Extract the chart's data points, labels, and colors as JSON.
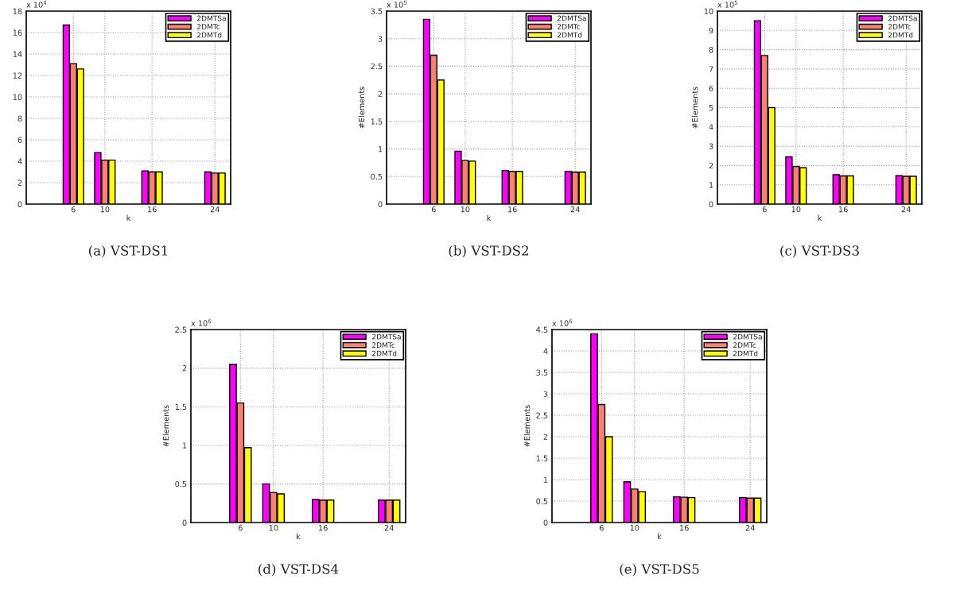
{
  "chart_data": [
    {
      "type": "bar",
      "title": "(a) VST-DS1",
      "xlabel": "k",
      "annotations": [
        "x 10$^{4}$"
      ],
      "x": [
        6,
        10,
        16,
        24
      ],
      "xlim": [
        0,
        26
      ],
      "xticks": [
        6,
        10,
        16,
        24
      ],
      "ylim": [
        0,
        18
      ],
      "yticks": [
        0,
        2,
        4,
        6,
        8,
        10,
        12,
        14,
        16,
        18
      ],
      "grid": true,
      "legend": "top right",
      "series": [
        {
          "name": "2DMTSa",
          "color": "#ff00ff",
          "values": [
            16.7,
            4.8,
            3.1,
            3.0
          ]
        },
        {
          "name": "2DMTc",
          "color": "#fa8072",
          "values": [
            13.1,
            4.1,
            3.0,
            2.9
          ]
        },
        {
          "name": "2DMTd",
          "color": "#ffff00",
          "values": [
            12.6,
            4.1,
            3.0,
            2.9
          ]
        }
      ]
    },
    {
      "type": "bar",
      "title": "(b) VST-DS2",
      "xlabel": "k",
      "ylabel": "#Elements",
      "annotations": [
        "x 10$^{5}$"
      ],
      "x": [
        6,
        10,
        16,
        24
      ],
      "xlim": [
        0,
        26
      ],
      "xticks": [
        6,
        10,
        16,
        24
      ],
      "ylim": [
        0,
        3.5
      ],
      "yticks": [
        0,
        0.5,
        1,
        1.5,
        2,
        2.5,
        3,
        3.5
      ],
      "grid": true,
      "legend": "top right",
      "series": [
        {
          "name": "2DMTSa",
          "color": "#ff00ff",
          "values": [
            3.35,
            0.96,
            0.61,
            0.59
          ]
        },
        {
          "name": "2DMTc",
          "color": "#fa8072",
          "values": [
            2.7,
            0.79,
            0.59,
            0.58
          ]
        },
        {
          "name": "2DMTd",
          "color": "#ffff00",
          "values": [
            2.25,
            0.78,
            0.59,
            0.58
          ]
        }
      ]
    },
    {
      "type": "bar",
      "title": "(c) VST-DS3",
      "xlabel": "k",
      "ylabel": "#Elements",
      "annotations": [
        "x 10$^{5}$"
      ],
      "x": [
        6,
        10,
        16,
        24
      ],
      "xlim": [
        0,
        26
      ],
      "xticks": [
        6,
        10,
        16,
        24
      ],
      "ylim": [
        0,
        10
      ],
      "yticks": [
        0,
        1,
        2,
        3,
        4,
        5,
        6,
        7,
        8,
        9,
        10
      ],
      "grid": true,
      "legend": "top right",
      "series": [
        {
          "name": "2DMTSa",
          "color": "#ff00ff",
          "values": [
            9.5,
            2.45,
            1.52,
            1.47
          ]
        },
        {
          "name": "2DMTc",
          "color": "#fa8072",
          "values": [
            7.7,
            1.95,
            1.46,
            1.44
          ]
        },
        {
          "name": "2DMTd",
          "color": "#ffff00",
          "values": [
            5.0,
            1.88,
            1.46,
            1.44
          ]
        }
      ]
    },
    {
      "type": "bar",
      "title": "(d) VST-DS4",
      "xlabel": "k",
      "ylabel": "#Elements",
      "annotations": [
        "x 10$^{6}$"
      ],
      "x": [
        6,
        10,
        16,
        24
      ],
      "xlim": [
        0,
        26
      ],
      "xticks": [
        6,
        10,
        16,
        24
      ],
      "ylim": [
        0,
        2.5
      ],
      "yticks": [
        0,
        0.5,
        1,
        1.5,
        2,
        2.5
      ],
      "grid": true,
      "legend": "top right",
      "series": [
        {
          "name": "2DMTSa",
          "color": "#ff00ff",
          "values": [
            2.05,
            0.5,
            0.3,
            0.29
          ]
        },
        {
          "name": "2DMTc",
          "color": "#fa8072",
          "values": [
            1.55,
            0.39,
            0.29,
            0.29
          ]
        },
        {
          "name": "2DMTd",
          "color": "#ffff00",
          "values": [
            0.97,
            0.37,
            0.29,
            0.29
          ]
        }
      ]
    },
    {
      "type": "bar",
      "title": "(e) VST-DS5",
      "xlabel": "k",
      "ylabel": "#Elements",
      "annotations": [
        "x 10$^{6}$"
      ],
      "x": [
        6,
        10,
        16,
        24
      ],
      "xlim": [
        0,
        26
      ],
      "xticks": [
        6,
        10,
        16,
        24
      ],
      "ylim": [
        0,
        4.5
      ],
      "yticks": [
        0,
        0.5,
        1,
        1.5,
        2,
        2.5,
        3,
        3.5,
        4,
        4.5
      ],
      "grid": true,
      "legend": "top right",
      "series": [
        {
          "name": "2DMTSa",
          "color": "#ff00ff",
          "values": [
            4.4,
            0.95,
            0.6,
            0.58
          ]
        },
        {
          "name": "2DMTc",
          "color": "#fa8072",
          "values": [
            2.75,
            0.78,
            0.59,
            0.57
          ]
        },
        {
          "name": "2DMTd",
          "color": "#ffff00",
          "values": [
            2.0,
            0.72,
            0.58,
            0.57
          ]
        }
      ]
    }
  ]
}
